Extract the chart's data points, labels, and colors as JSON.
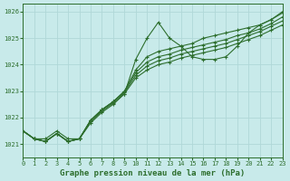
{
  "title": "Graphe pression niveau de la mer (hPa)",
  "background_color": "#c8eaea",
  "grid_color": "#ddf0f0",
  "line_color": "#2d6e2d",
  "xlim": [
    0,
    23
  ],
  "ylim": [
    1020.5,
    1026.3
  ],
  "yticks": [
    1021,
    1022,
    1023,
    1024,
    1025,
    1026
  ],
  "xticks": [
    0,
    1,
    2,
    3,
    4,
    5,
    6,
    7,
    8,
    9,
    10,
    11,
    12,
    13,
    14,
    15,
    16,
    17,
    18,
    19,
    20,
    21,
    22,
    23
  ],
  "series": [
    [
      1021.5,
      1021.2,
      1021.2,
      1021.5,
      1021.2,
      1021.2,
      1021.8,
      1022.2,
      1022.5,
      1022.9,
      1024.2,
      1025.0,
      1025.6,
      1025.0,
      1024.7,
      1024.3,
      1024.2,
      1024.2,
      1024.3,
      1024.7,
      1025.2,
      1025.5,
      1025.7,
      1026.0
    ],
    [
      1021.5,
      1021.2,
      1021.1,
      1021.4,
      1021.1,
      1021.2,
      1021.9,
      1022.3,
      1022.6,
      1023.0,
      1023.8,
      1024.3,
      1024.5,
      1024.6,
      1024.7,
      1024.8,
      1025.0,
      1025.1,
      1025.2,
      1025.3,
      1025.4,
      1025.5,
      1025.7,
      1025.95
    ],
    [
      1021.5,
      1021.2,
      1021.1,
      1021.4,
      1021.1,
      1021.2,
      1021.9,
      1022.3,
      1022.6,
      1023.0,
      1023.7,
      1024.1,
      1024.3,
      1024.4,
      1024.55,
      1024.65,
      1024.75,
      1024.85,
      1024.95,
      1025.1,
      1025.2,
      1025.35,
      1025.55,
      1025.8
    ],
    [
      1021.5,
      1021.2,
      1021.1,
      1021.4,
      1021.1,
      1021.2,
      1021.9,
      1022.3,
      1022.6,
      1022.95,
      1023.6,
      1023.95,
      1024.15,
      1024.25,
      1024.4,
      1024.5,
      1024.6,
      1024.7,
      1024.8,
      1024.95,
      1025.1,
      1025.25,
      1025.45,
      1025.65
    ],
    [
      1021.5,
      1021.2,
      1021.1,
      1021.4,
      1021.1,
      1021.2,
      1021.85,
      1022.25,
      1022.55,
      1022.9,
      1023.5,
      1023.8,
      1024.0,
      1024.1,
      1024.25,
      1024.35,
      1024.45,
      1024.55,
      1024.65,
      1024.8,
      1024.95,
      1025.1,
      1025.3,
      1025.5
    ]
  ]
}
